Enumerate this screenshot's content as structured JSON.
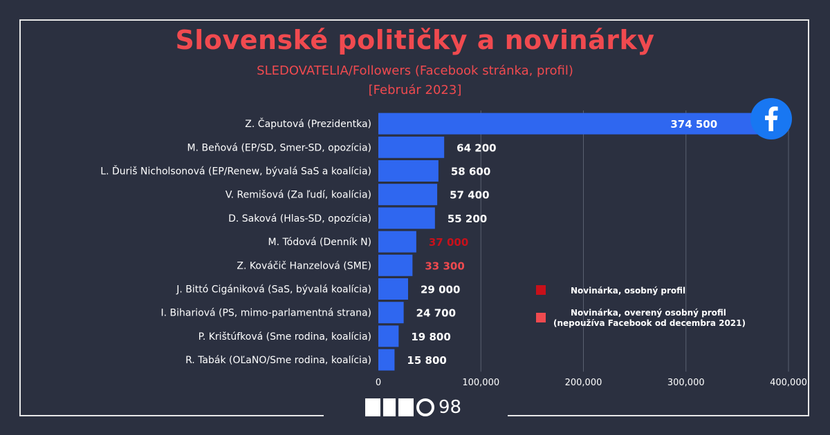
{
  "title": "Slovenské političky a novinárky",
  "subtitle": "SLEDOVATELIA/Followers (Facebook stránka, profil)",
  "subtitle2": "[Február 2023]",
  "logo_text": "MEMO98",
  "logo_number": "98",
  "colors": {
    "background": "#2b3040",
    "bar": "#2f67f0",
    "title": "#f04a4f",
    "journalist_personal": "#c8101a",
    "journalist_verified": "#f04a4f",
    "value_default": "#ffffff"
  },
  "chart_data": {
    "type": "bar",
    "orientation": "horizontal",
    "xlim": [
      0,
      400000
    ],
    "grid": true,
    "ticks": [
      {
        "value": 0,
        "label": "0"
      },
      {
        "value": 100000,
        "label": "100,000"
      },
      {
        "value": 200000,
        "label": "200,000"
      },
      {
        "value": 300000,
        "label": "300,000"
      },
      {
        "value": 400000,
        "label": "400,000"
      }
    ],
    "categories": [
      "Z. Čaputová (Prezidentka)",
      "M. Beňová (EP/SD, Smer-SD, opozícia)",
      "L. Ďuriš Nicholsonová (EP/Renew, bývalá SaS a koalícia)",
      "V. Remišová (Za ľudí, koalícia)",
      "D. Saková (Hlas-SD, opozícia)",
      "M. Tódová (Denník N)",
      "Z. Kováčič Hanzelová (SME)",
      "J. Bittó Cigániková (SaS, bývalá koalícia)",
      "I. Bihariová (PS, mimo-parlamentná strana)",
      "P. Krištúfková (Sme rodina, koalícia)",
      "R. Tabák (OĽaNO/Sme rodina, koalícia)"
    ],
    "values": [
      374500,
      64200,
      58600,
      57400,
      55200,
      37000,
      33300,
      29000,
      24700,
      19800,
      15800
    ],
    "value_labels": [
      "374 500",
      "64 200",
      "58 600",
      "57 400",
      "55 200",
      "37 000",
      "33 300",
      "29 000",
      "24 700",
      "19 800",
      "15 800"
    ],
    "value_label_types": [
      "default",
      "default",
      "default",
      "default",
      "default",
      "journalist_personal",
      "journalist_verified",
      "default",
      "default",
      "default",
      "default"
    ],
    "legend": [
      {
        "label": "Novinárka, osobný profil",
        "type": "journalist_personal"
      },
      {
        "label": "Novinárka, overený osobný profil",
        "label2": "(nepoužíva Facebook od decembra 2021)",
        "type": "journalist_verified"
      }
    ],
    "legend_position": "right"
  }
}
